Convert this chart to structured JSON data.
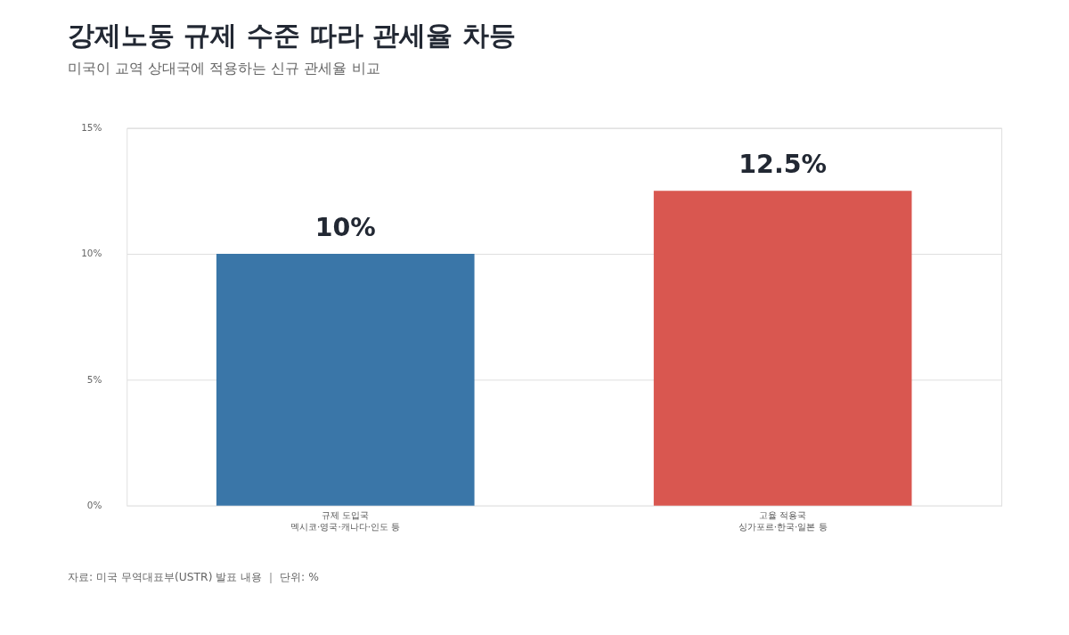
{
  "chart_data": {
    "type": "bar",
    "title": "강제노동 규제 수준 따라 관세율 차등",
    "subtitle": "미국이 교역 상대국에 적용하는 신규 관세율 비교",
    "categories": [
      "규제 도입국\n멕시코·영국·캐나다·인도 등",
      "고율 적용국\n싱가포르·한국·일본 등"
    ],
    "values": [
      10,
      12.5
    ],
    "colors": [
      "#3a76a8",
      "#d95750"
    ],
    "value_labels": [
      "10%",
      "12.5%"
    ],
    "ylim": [
      0,
      15
    ],
    "yticks": [
      {
        "value": 0,
        "label": "0%"
      },
      {
        "value": 5,
        "label": "5%"
      },
      {
        "value": 10,
        "label": "10%"
      },
      {
        "value": 15,
        "label": "15%"
      }
    ],
    "grid": "y",
    "legend": false,
    "annotations": [
      "자료: 미국 무역대표부(USTR) 발표 내용 ｜ 단위: %"
    ]
  }
}
